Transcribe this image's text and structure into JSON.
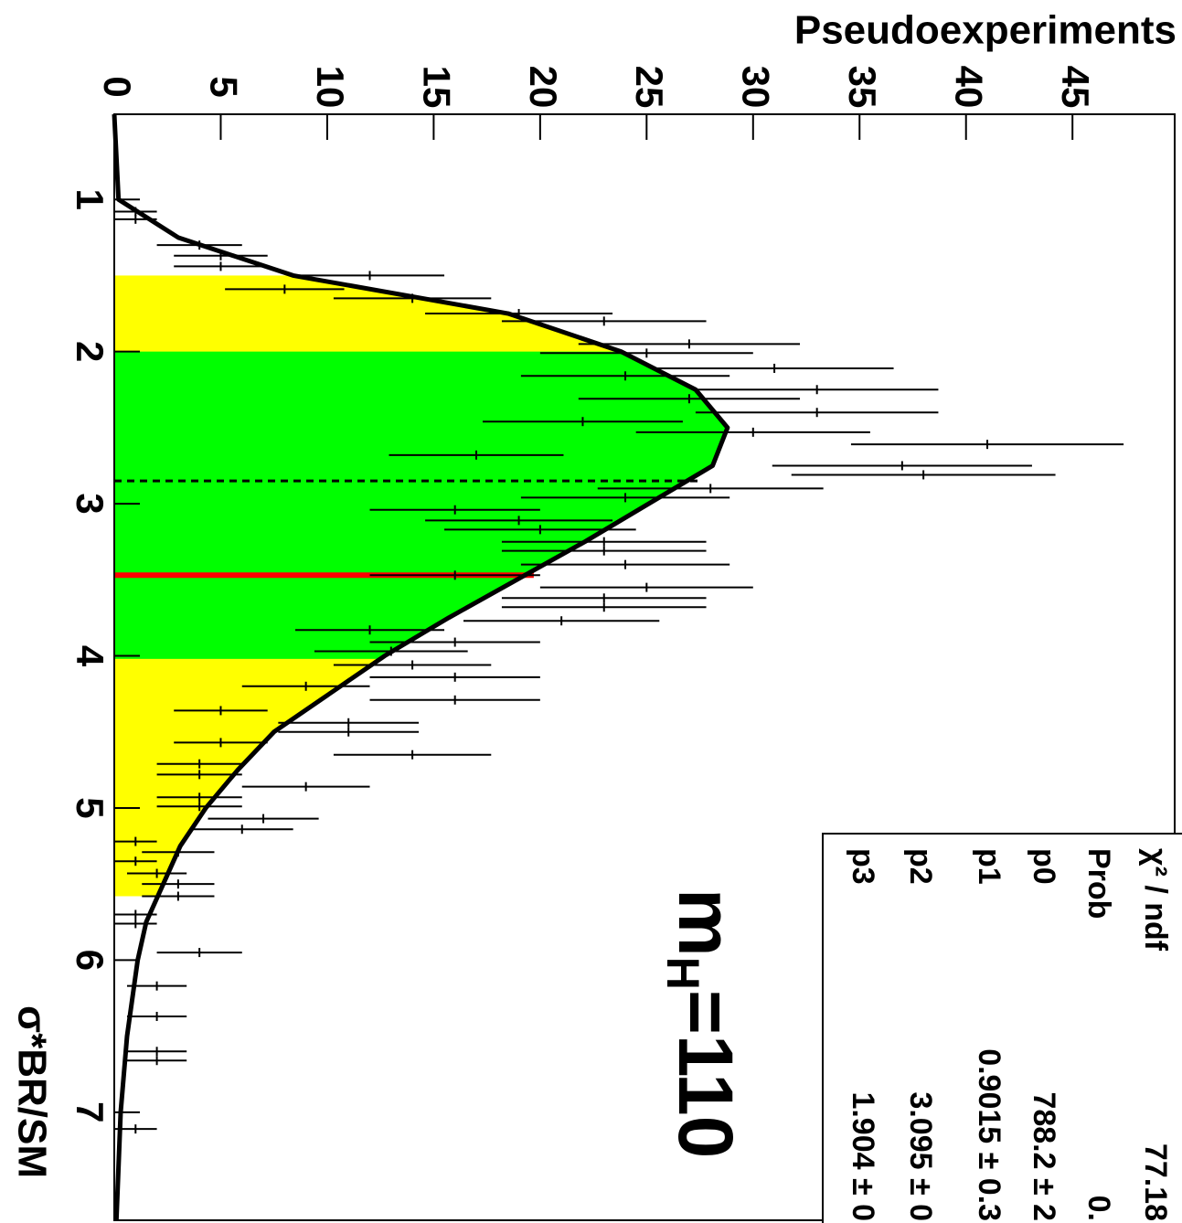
{
  "chart_data": {
    "type": "histfit",
    "x_label": "σ*BR/SM",
    "y_label": "Pseudoexperiments",
    "xlim": [
      0.44,
      7.71
    ],
    "ylim": [
      0,
      49.8
    ],
    "xticks": [
      1,
      2,
      3,
      4,
      5,
      6,
      7
    ],
    "yticks": [
      0,
      5,
      10,
      15,
      20,
      25,
      30,
      35,
      40,
      45
    ],
    "color": "#000000",
    "bands": [
      {
        "color": "#ffff00",
        "range": [
          1.5,
          5.58
        ]
      },
      {
        "color": "#00ff00",
        "range": [
          2.0,
          4.02
        ]
      }
    ],
    "markers": [
      {
        "x": 2.85,
        "value": 27.5,
        "color": "#000000",
        "dashed": true
      },
      {
        "x": 3.47,
        "value": 19.7,
        "color": "#ff0000",
        "dashed": false
      }
    ],
    "points": {
      "x": [
        1.08,
        1.13,
        1.3,
        1.37,
        1.44,
        1.5,
        1.59,
        1.65,
        1.75,
        1.8,
        1.95,
        2.01,
        2.11,
        2.16,
        2.25,
        2.31,
        2.4,
        2.46,
        2.53,
        2.61,
        2.68,
        2.75,
        2.81,
        2.9,
        2.96,
        3.04,
        3.11,
        3.17,
        3.25,
        3.31,
        3.4,
        3.47,
        3.55,
        3.62,
        3.68,
        3.77,
        3.83,
        3.91,
        3.97,
        4.06,
        4.14,
        4.2,
        4.29,
        4.36,
        4.44,
        4.5,
        4.57,
        4.65,
        4.71,
        4.78,
        4.86,
        4.93,
        4.99,
        5.07,
        5.14,
        5.22,
        5.29,
        5.35,
        5.43,
        5.5,
        5.58,
        5.7,
        5.76,
        5.95,
        6.17,
        6.37,
        6.6,
        6.66,
        7.11
      ],
      "values": [
        1,
        1,
        4,
        5,
        5,
        12,
        8,
        14,
        19,
        23,
        27,
        25,
        31,
        24,
        33,
        27,
        33,
        22,
        30,
        41,
        17,
        37,
        38,
        28,
        24,
        16,
        19,
        20,
        23,
        23,
        24,
        16,
        25,
        23,
        23,
        21,
        12,
        16,
        13,
        14,
        16,
        9,
        16,
        5,
        11,
        11,
        5,
        14,
        4,
        4,
        9,
        4,
        4,
        7,
        6,
        1,
        3,
        1,
        2,
        3,
        3,
        1,
        1,
        4,
        2,
        2,
        2,
        2,
        1
      ],
      "errors": [
        1,
        1,
        2,
        2.2,
        2.2,
        3.5,
        2.8,
        3.7,
        4.4,
        4.8,
        5.2,
        5,
        5.6,
        4.9,
        5.7,
        5.2,
        5.7,
        4.7,
        5.5,
        6.4,
        4.1,
        6.1,
        6.2,
        5.3,
        4.9,
        4,
        4.4,
        4.5,
        4.8,
        4.8,
        4.9,
        4,
        5,
        4.8,
        4.8,
        4.6,
        3.5,
        4,
        3.6,
        3.7,
        4,
        3,
        4,
        2.2,
        3.3,
        3.3,
        2.2,
        3.7,
        2,
        2,
        3,
        2,
        2,
        2.6,
        2.4,
        1,
        1.7,
        1,
        1.4,
        1.7,
        1.7,
        1,
        1,
        2,
        1.4,
        1.4,
        1.4,
        1.4,
        1
      ],
      "bin_width": 0.06
    },
    "fit": {
      "x": [
        0.44,
        1.0,
        1.25,
        1.5,
        1.75,
        2.0,
        2.25,
        2.5,
        2.75,
        3.0,
        3.25,
        3.5,
        3.75,
        4.0,
        4.25,
        4.5,
        4.75,
        5.0,
        5.25,
        5.5,
        5.75,
        6.0,
        6.5,
        7.0,
        7.71
      ],
      "values": [
        0,
        0.2,
        3,
        8.4,
        18.5,
        23.8,
        27.3,
        28.8,
        28.1,
        25.1,
        22.1,
        18.9,
        15.7,
        12.7,
        10.1,
        7.5,
        5.8,
        4.3,
        3.1,
        2.3,
        1.5,
        1.1,
        0.6,
        0.3,
        0.1
      ]
    },
    "annotation": {
      "main": "m",
      "sub": "H",
      "tail": "=110"
    },
    "stats": [
      {
        "label": "χ² / ndf",
        "value": "77.18"
      },
      {
        "label": "Prob",
        "value": "0."
      },
      {
        "label": "p0",
        "value": "788.2 ± 2"
      },
      {
        "label": "p1",
        "value": "0.9015 ± 0.3"
      },
      {
        "label": "p2",
        "value": "3.095 ± 0"
      },
      {
        "label": "p3",
        "value": "1.904 ± 0"
      }
    ]
  }
}
